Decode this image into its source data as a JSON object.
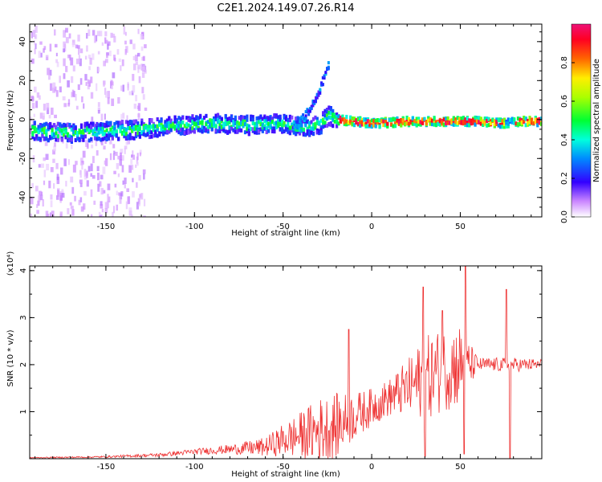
{
  "title": "C2E1.2024.149.07.26.R14",
  "chart_data": [
    {
      "type": "heatmap",
      "xlabel": "Height of straight line (km)",
      "ylabel": "Frequency (Hz)",
      "xlim": [
        -193,
        96
      ],
      "ylim": [
        -50,
        49
      ],
      "xticks": [
        "-150",
        "-100",
        "-50",
        "0",
        "50"
      ],
      "xtick_values": [
        -150,
        -100,
        -50,
        0,
        50
      ],
      "yticks": [
        "40",
        "20",
        "0",
        "-20",
        "-40"
      ],
      "ytick_values": [
        40,
        20,
        0,
        -20,
        -40
      ],
      "colorbar": {
        "label": "Normalized spectral amplitude",
        "range": [
          0,
          1
        ],
        "ticks": [
          "0.0",
          "0.2",
          "0.4",
          "0.6",
          "0.8"
        ],
        "tick_values": [
          0.0,
          0.2,
          0.4,
          0.6,
          0.8
        ]
      },
      "ridge": {
        "x": [
          -190,
          -170,
          -150,
          -130,
          -110,
          -90,
          -70,
          -50,
          -40,
          -30,
          -25,
          -20,
          0,
          20,
          40,
          60,
          75,
          80,
          95
        ],
        "y": [
          -6,
          -7,
          -6,
          -5,
          -3,
          -2,
          -3,
          -2,
          -4,
          -3,
          2,
          0,
          -2,
          -1,
          -1,
          -1,
          -2,
          -1,
          -1
        ]
      },
      "arm": {
        "x": [
          -45,
          -38,
          -32,
          -28,
          -25
        ],
        "y": [
          -5,
          2,
          10,
          20,
          28
        ]
      }
    },
    {
      "type": "line",
      "xlabel": "Height of straight line (km)",
      "ylabel": "SNR (10 * v/v)",
      "yscale_label": "(x10⁴)",
      "color": "#ee3333",
      "xlim": [
        -193,
        96
      ],
      "ylim": [
        0,
        4.1
      ],
      "xticks": [
        "-150",
        "-100",
        "-50",
        "0",
        "50"
      ],
      "xtick_values": [
        -150,
        -100,
        -50,
        0,
        50
      ],
      "yticks": [
        "1",
        "2",
        "3",
        "4"
      ],
      "ytick_values": [
        1,
        2,
        3,
        4
      ],
      "envelope": {
        "x": [
          -193,
          -150,
          -120,
          -100,
          -80,
          -60,
          -50,
          -40,
          -30,
          -20,
          -10,
          0,
          10,
          20,
          30,
          40,
          50,
          55,
          60,
          70,
          80,
          96
        ],
        "base": [
          0.02,
          0.04,
          0.08,
          0.15,
          0.2,
          0.25,
          0.4,
          0.5,
          0.6,
          0.7,
          0.9,
          1.1,
          1.3,
          1.5,
          1.7,
          1.9,
          2.0,
          2.0,
          2.0,
          2.0,
          2.0,
          2.0
        ],
        "amp": [
          0.01,
          0.02,
          0.04,
          0.06,
          0.1,
          0.2,
          0.35,
          0.5,
          0.7,
          0.7,
          0.5,
          0.4,
          0.4,
          0.6,
          0.9,
          0.9,
          0.9,
          0.5,
          0.15,
          0.15,
          0.15,
          0.12
        ]
      },
      "spikes": [
        {
          "x": -13,
          "y": 2.75
        },
        {
          "x": 29,
          "y": 3.65
        },
        {
          "x": 40,
          "y": 3.15
        },
        {
          "x": 53,
          "y": 4.1
        },
        {
          "x": 76,
          "y": 3.6
        },
        {
          "x": 30,
          "y": 0.05
        },
        {
          "x": 52,
          "y": 0.1
        },
        {
          "x": 78,
          "y": 0.0
        }
      ]
    }
  ]
}
